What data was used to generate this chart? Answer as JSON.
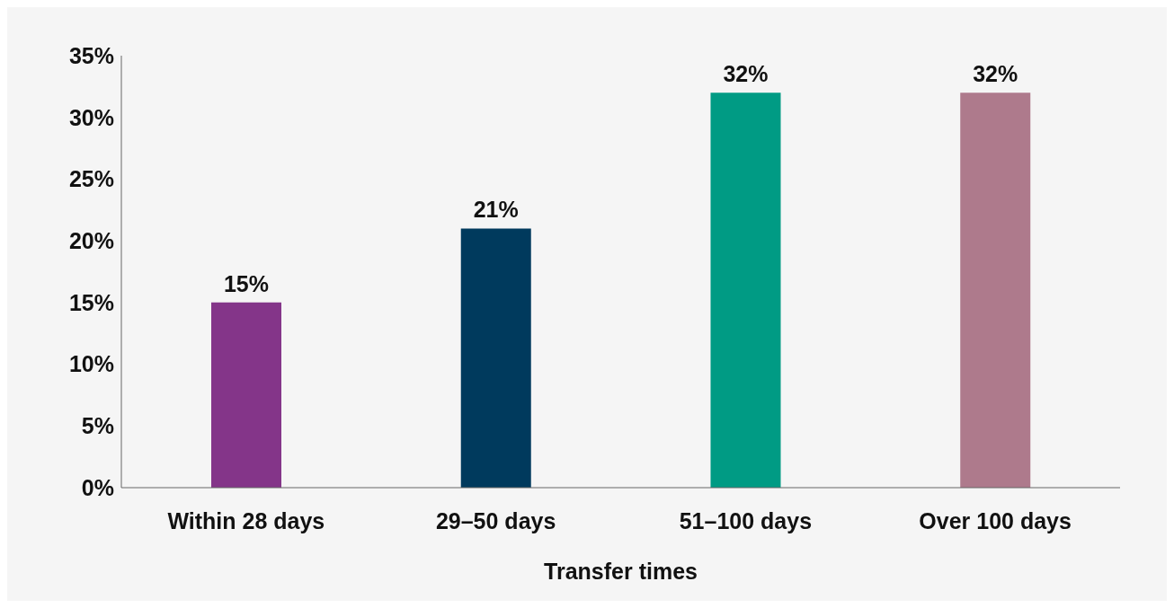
{
  "chart_data": {
    "type": "bar",
    "xlabel": "Transfer times",
    "categories": [
      "Within 28 days",
      "29–50 days",
      "51–100 days",
      "Over 100 days"
    ],
    "values": [
      15,
      21,
      32,
      32
    ],
    "colors": [
      "#843589",
      "#003a5d",
      "#009b84",
      "#ae7a8c"
    ],
    "value_labels": [
      "15%",
      "21%",
      "32%",
      "32%"
    ],
    "ylim": [
      0,
      35
    ],
    "yticks": [
      {
        "value": 0,
        "label": "0%"
      },
      {
        "value": 5,
        "label": "5%"
      },
      {
        "value": 10,
        "label": "10%"
      },
      {
        "value": 15,
        "label": "15%"
      },
      {
        "value": 20,
        "label": "20%"
      },
      {
        "value": 25,
        "label": "25%"
      },
      {
        "value": 30,
        "label": "30%"
      },
      {
        "value": 35,
        "label": "35%"
      }
    ],
    "grid": false,
    "legend": false
  }
}
